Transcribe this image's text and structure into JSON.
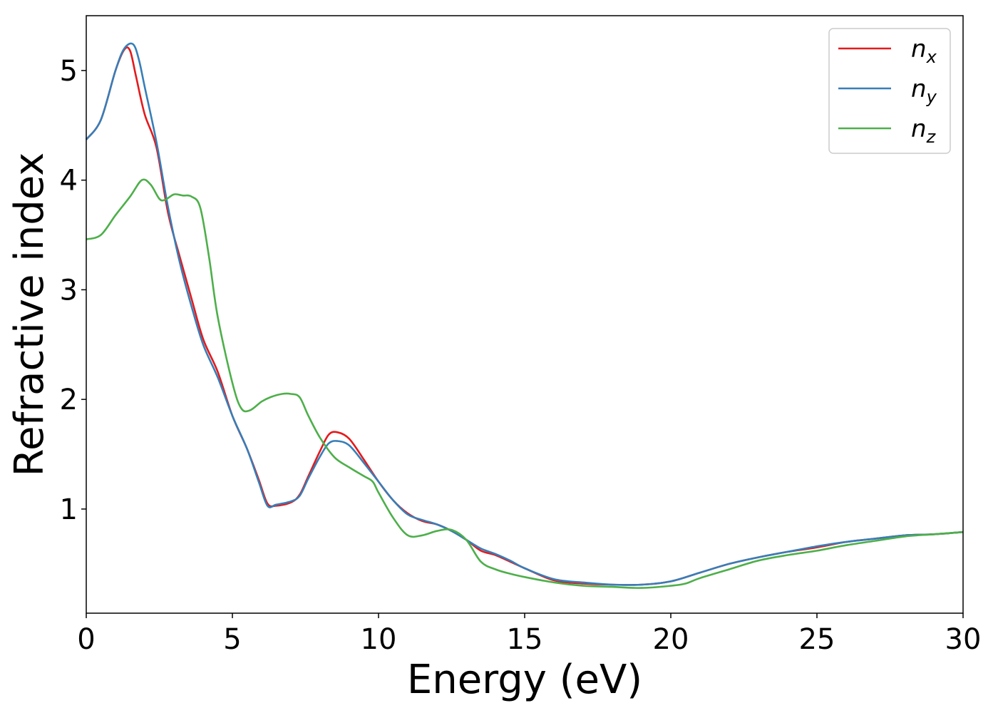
{
  "chart_data": {
    "type": "line",
    "xlabel": "Energy (eV)",
    "ylabel": "Refractive index",
    "xlim": [
      0,
      30
    ],
    "ylim": [
      0.05,
      5.5
    ],
    "xticks": [
      0,
      5,
      10,
      15,
      20,
      25,
      30
    ],
    "yticks": [
      1,
      2,
      3,
      4,
      5
    ],
    "grid": false,
    "legend_position": "top-right",
    "series": [
      {
        "name": "n",
        "subscript": "x",
        "color": "#e41a1c",
        "x": [
          0,
          0.5,
          1.0,
          1.3,
          1.5,
          1.7,
          2.0,
          2.4,
          2.8,
          3.2,
          3.6,
          4.0,
          4.5,
          5.0,
          5.5,
          5.9,
          6.2,
          6.5,
          7.0,
          7.3,
          7.6,
          8.0,
          8.3,
          8.6,
          9.0,
          9.5,
          10.0,
          10.5,
          11.0,
          11.5,
          12.0,
          12.5,
          13.0,
          13.5,
          14.0,
          14.5,
          15.0,
          16.0,
          17.0,
          18.0,
          19.0,
          20.0,
          21.0,
          22.0,
          23.0,
          24.0,
          25.0,
          26.0,
          27.0,
          28.0,
          29.0,
          30.0
        ],
        "y": [
          4.37,
          4.55,
          5.0,
          5.19,
          5.18,
          4.95,
          4.6,
          4.3,
          3.7,
          3.3,
          2.92,
          2.55,
          2.25,
          1.85,
          1.55,
          1.27,
          1.05,
          1.03,
          1.06,
          1.13,
          1.3,
          1.53,
          1.68,
          1.7,
          1.64,
          1.45,
          1.25,
          1.08,
          0.96,
          0.89,
          0.86,
          0.8,
          0.72,
          0.62,
          0.58,
          0.52,
          0.46,
          0.35,
          0.32,
          0.31,
          0.31,
          0.34,
          0.42,
          0.5,
          0.56,
          0.61,
          0.65,
          0.7,
          0.73,
          0.76,
          0.77,
          0.79
        ]
      },
      {
        "name": "n",
        "subscript": "y",
        "color": "#377eb8",
        "x": [
          0,
          0.5,
          1.0,
          1.3,
          1.6,
          1.8,
          2.0,
          2.4,
          2.8,
          3.2,
          3.6,
          4.0,
          4.5,
          5.0,
          5.5,
          5.9,
          6.2,
          6.5,
          7.0,
          7.3,
          7.6,
          8.0,
          8.3,
          8.6,
          9.0,
          9.5,
          10.0,
          10.5,
          11.0,
          11.5,
          12.0,
          12.5,
          13.0,
          13.5,
          14.0,
          14.5,
          15.0,
          16.0,
          17.0,
          18.0,
          19.0,
          20.0,
          21.0,
          22.0,
          23.0,
          24.0,
          25.0,
          26.0,
          27.0,
          28.0,
          29.0,
          30.0
        ],
        "y": [
          4.37,
          4.55,
          5.0,
          5.2,
          5.24,
          5.1,
          4.85,
          4.35,
          3.75,
          3.25,
          2.85,
          2.5,
          2.2,
          1.85,
          1.55,
          1.25,
          1.03,
          1.04,
          1.07,
          1.12,
          1.28,
          1.48,
          1.6,
          1.62,
          1.58,
          1.42,
          1.25,
          1.08,
          0.95,
          0.9,
          0.86,
          0.8,
          0.72,
          0.64,
          0.59,
          0.53,
          0.46,
          0.36,
          0.33,
          0.31,
          0.31,
          0.34,
          0.42,
          0.5,
          0.56,
          0.61,
          0.66,
          0.7,
          0.73,
          0.76,
          0.77,
          0.79
        ]
      },
      {
        "name": "n",
        "subscript": "z",
        "color": "#4daf4a",
        "x": [
          0,
          0.5,
          1.0,
          1.5,
          1.9,
          2.2,
          2.5,
          2.7,
          3.0,
          3.3,
          3.6,
          3.9,
          4.2,
          4.5,
          5.0,
          5.3,
          5.6,
          6.0,
          6.3,
          6.7,
          7.0,
          7.3,
          7.6,
          8.0,
          8.5,
          9.0,
          9.5,
          9.8,
          10.0,
          10.5,
          11.0,
          11.5,
          12.0,
          12.5,
          13.0,
          13.5,
          14.0,
          14.5,
          15.0,
          16.0,
          17.0,
          18.0,
          19.0,
          20.0,
          20.5,
          21.0,
          22.0,
          23.0,
          24.0,
          25.0,
          26.0,
          27.0,
          28.0,
          29.0,
          30.0
        ],
        "y": [
          3.46,
          3.5,
          3.68,
          3.85,
          4.0,
          3.96,
          3.83,
          3.82,
          3.87,
          3.86,
          3.85,
          3.75,
          3.3,
          2.75,
          2.15,
          1.92,
          1.9,
          1.98,
          2.02,
          2.05,
          2.05,
          2.02,
          1.85,
          1.65,
          1.47,
          1.38,
          1.3,
          1.25,
          1.15,
          0.92,
          0.76,
          0.76,
          0.8,
          0.81,
          0.72,
          0.52,
          0.45,
          0.41,
          0.38,
          0.33,
          0.3,
          0.29,
          0.28,
          0.3,
          0.32,
          0.37,
          0.45,
          0.53,
          0.58,
          0.62,
          0.67,
          0.71,
          0.75,
          0.77,
          0.79
        ]
      }
    ]
  }
}
